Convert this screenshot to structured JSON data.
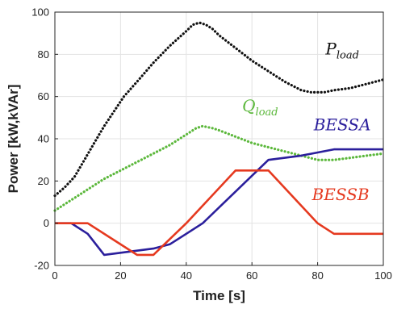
{
  "chart_data": {
    "type": "line",
    "xlabel": "Time [s]",
    "ylabel": "Power [kW,kVAr]",
    "xlim": [
      0,
      100
    ],
    "ylim": [
      -20,
      100
    ],
    "xticks": [
      "0",
      "20",
      "40",
      "60",
      "80",
      "100"
    ],
    "yticks": [
      "-20",
      "0",
      "20",
      "40",
      "60",
      "80",
      "100"
    ],
    "grid": true,
    "legend": "none",
    "series": [
      {
        "name": "P_load",
        "label_main": "P",
        "label_sub": "load",
        "color": "#111111",
        "style": "dotted",
        "x": [
          0,
          3,
          6,
          9,
          12,
          15,
          18,
          21,
          25,
          30,
          35,
          40,
          42,
          44,
          46,
          48,
          50,
          55,
          60,
          65,
          70,
          75,
          78,
          80,
          82,
          85,
          90,
          95,
          100
        ],
        "y": [
          13,
          17,
          22,
          30,
          38,
          46,
          53,
          60,
          67,
          76,
          84,
          91,
          94,
          95,
          94,
          92,
          89,
          83,
          77,
          72,
          67,
          63,
          62,
          62,
          62,
          63,
          64,
          66,
          68
        ]
      },
      {
        "name": "Q_load",
        "label_main": "Q",
        "label_sub": "load",
        "color": "#5cb83c",
        "style": "dotted",
        "x": [
          0,
          3,
          6,
          10,
          15,
          20,
          25,
          30,
          35,
          40,
          43,
          45,
          48,
          50,
          55,
          60,
          65,
          70,
          75,
          80,
          85,
          90,
          95,
          100
        ],
        "y": [
          6,
          9,
          12,
          16,
          21,
          25,
          29,
          33,
          37,
          42,
          45,
          46,
          45,
          44,
          41,
          38,
          36,
          34,
          32,
          30,
          30,
          31,
          32,
          33
        ]
      },
      {
        "name": "BESSA",
        "label_main": "BESSA",
        "color": "#2b1f9c",
        "style": "solid",
        "x": [
          0,
          5,
          10,
          15,
          20,
          25,
          30,
          35,
          40,
          45,
          55,
          65,
          75,
          85,
          100
        ],
        "y": [
          0,
          0,
          -5,
          -15,
          -14,
          -13,
          -12,
          -10,
          -5,
          0,
          15,
          30,
          32,
          35,
          35
        ]
      },
      {
        "name": "BESSB",
        "label_main": "BESSB",
        "color": "#e5391f",
        "style": "solid",
        "x": [
          0,
          10,
          25,
          30,
          40,
          55,
          65,
          80,
          85,
          100
        ],
        "y": [
          0,
          0,
          -15,
          -15,
          0,
          25,
          25,
          0,
          -5,
          -5
        ]
      }
    ],
    "annotations": [
      {
        "series": "P_load",
        "x": 87.5,
        "y": 80
      },
      {
        "series": "Q_load",
        "x": 62.5,
        "y": 53
      },
      {
        "series": "BESSA",
        "x": 87.5,
        "y": 44
      },
      {
        "series": "BESSB",
        "x": 87,
        "y": 11
      }
    ]
  }
}
